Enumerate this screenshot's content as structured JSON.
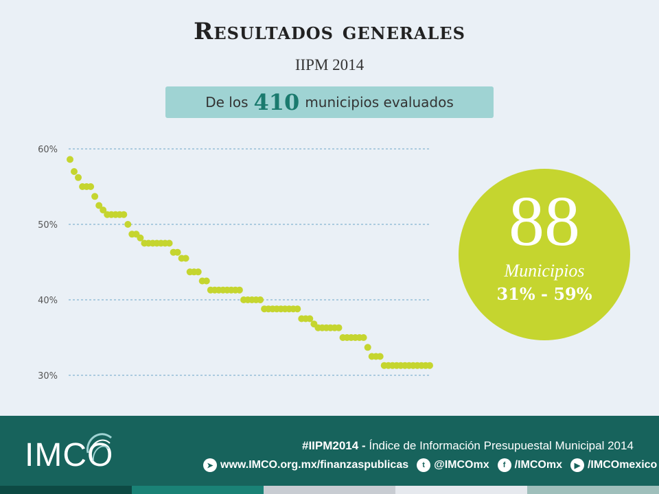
{
  "header": {
    "title": "Resultados generales",
    "subtitle": "IIPM 2014"
  },
  "banner": {
    "prefix": "De los",
    "number": "410",
    "suffix": "municipios evaluados"
  },
  "highlight": {
    "number": "88",
    "label": "Municipios",
    "range": "31% - 59%",
    "color": "#c5d52f"
  },
  "chart_data": {
    "type": "scatter",
    "title": "",
    "xlabel": "",
    "ylabel": "",
    "ylim": [
      28,
      62
    ],
    "yticks": [
      "60%",
      "50%",
      "40%",
      "30%"
    ],
    "ytick_values": [
      60,
      50,
      40,
      30
    ],
    "grid": true,
    "point_color": "#c5d52f",
    "series": [
      {
        "values": [
          58.6,
          57.0,
          56.2,
          55.0,
          55.0,
          55.0,
          53.7,
          52.5,
          51.9,
          51.3,
          51.3,
          51.3,
          51.3,
          51.3,
          50.0,
          48.7,
          48.7,
          48.2,
          47.5,
          47.5,
          47.5,
          47.5,
          47.5,
          47.5,
          47.5,
          46.3,
          46.3,
          45.5,
          45.5,
          43.7,
          43.7,
          43.7,
          42.5,
          42.5,
          41.3,
          41.3,
          41.3,
          41.3,
          41.3,
          41.3,
          41.3,
          41.3,
          40.0,
          40.0,
          40.0,
          40.0,
          40.0,
          38.8,
          38.8,
          38.8,
          38.8,
          38.8,
          38.8,
          38.8,
          38.8,
          38.8,
          37.5,
          37.5,
          37.5,
          36.8,
          36.3,
          36.3,
          36.3,
          36.3,
          36.3,
          36.3,
          35.0,
          35.0,
          35.0,
          35.0,
          35.0,
          35.0,
          33.7,
          32.5,
          32.5,
          32.5,
          31.3,
          31.3,
          31.3,
          31.3,
          31.3,
          31.3,
          31.3,
          31.3,
          31.3,
          31.3,
          31.3,
          31.3
        ]
      }
    ]
  },
  "footer": {
    "logo": "IMCO",
    "hashtag": "#IIPM2014 -",
    "tagline": "Índice de Información Presupuestal Municipal 2014",
    "links": [
      {
        "icon": "telegram-icon",
        "glyph": "➤",
        "text": "www.IMCO.org.mx/finanzaspublicas"
      },
      {
        "icon": "twitter-icon",
        "glyph": "t",
        "text": "@IMCOmx"
      },
      {
        "icon": "facebook-icon",
        "glyph": "f",
        "text": "/IMCOmx"
      },
      {
        "icon": "youtube-icon",
        "glyph": "▶",
        "text": "/IMCOmexico"
      }
    ],
    "stripes": [
      "#0d4a44",
      "#1a8276",
      "#c8ccd2",
      "#e6e9ee",
      "#9fbfbb"
    ]
  }
}
